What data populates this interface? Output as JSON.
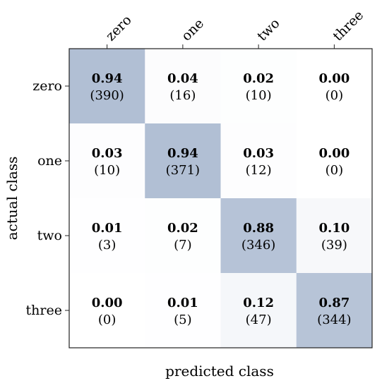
{
  "chart_data": {
    "type": "heatmap",
    "title": "",
    "xlabel": "predicted class",
    "ylabel": "actual class",
    "x_categories": [
      "zero",
      "one",
      "two",
      "three"
    ],
    "y_categories": [
      "zero",
      "one",
      "two",
      "three"
    ],
    "values": [
      [
        0.94,
        0.04,
        0.02,
        0.0
      ],
      [
        0.03,
        0.94,
        0.03,
        0.0
      ],
      [
        0.01,
        0.02,
        0.88,
        0.1
      ],
      [
        0.0,
        0.01,
        0.12,
        0.87
      ]
    ],
    "value_labels": [
      [
        "0.94",
        "0.04",
        "0.02",
        "0.00"
      ],
      [
        "0.03",
        "0.94",
        "0.03",
        "0.00"
      ],
      [
        "0.01",
        "0.02",
        "0.88",
        "0.10"
      ],
      [
        "0.00",
        "0.01",
        "0.12",
        "0.87"
      ]
    ],
    "count_labels": [
      [
        "(390)",
        "(16)",
        "(10)",
        "(0)"
      ],
      [
        "(10)",
        "(371)",
        "(12)",
        "(0)"
      ],
      [
        "(3)",
        "(7)",
        "(346)",
        "(39)"
      ],
      [
        "(0)",
        "(5)",
        "(47)",
        "(344)"
      ]
    ],
    "colors": {
      "low": "#ffffff",
      "high": "#b1bfd4",
      "frame": "#222222"
    },
    "grid": false
  }
}
